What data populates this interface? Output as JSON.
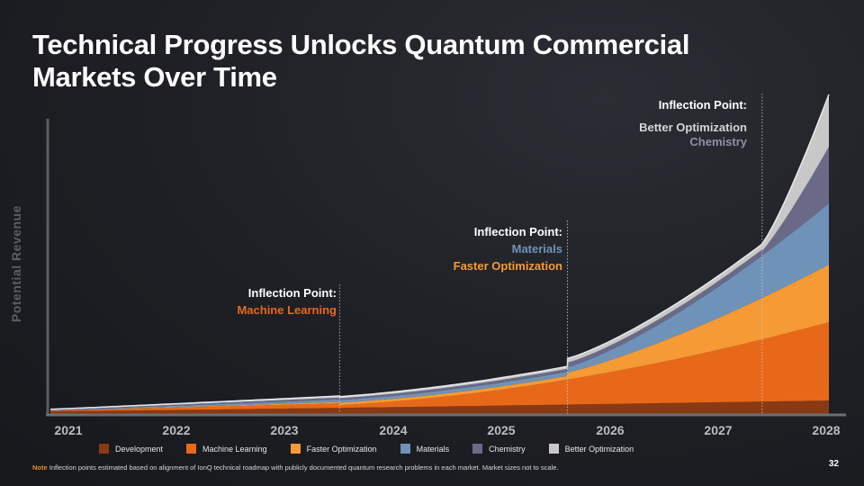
{
  "title": "Technical Progress Unlocks Quantum Commercial Markets Over Time",
  "page_number": "32",
  "note": {
    "label": "Note",
    "text": "Inflection points estimated based on alignment of IonQ technical roadmap with publicly documented quantum research problems in each market. Market sizes not to scale."
  },
  "inflections": [
    {
      "heading": "Inflection Point:",
      "lines": [
        {
          "text": "Machine Learning",
          "color": "#e8681a"
        }
      ]
    },
    {
      "heading": "Inflection Point:",
      "lines": [
        {
          "text": "Materials",
          "color": "#6f93b8"
        },
        {
          "text": "Faster Optimization",
          "color": "#f59a34"
        }
      ]
    },
    {
      "heading": "Inflection Point:",
      "lines": [
        {
          "text": "Better Optimization",
          "color": "#d6d6d6"
        },
        {
          "text": "Chemistry",
          "color": "#8f8fa8"
        }
      ]
    }
  ],
  "chart_data": {
    "type": "area",
    "stacked": true,
    "ylabel": "Potential Revenue",
    "xlabel": "",
    "x_ticks": [
      "2021",
      "2022",
      "2023",
      "2024",
      "2025",
      "2026",
      "2027",
      "2028"
    ],
    "xlim": [
      2021,
      2028
    ],
    "inflection_x": [
      2023.6,
      2025.65,
      2027.4
    ],
    "series": [
      {
        "name": "Development",
        "color": "#8a3a12"
      },
      {
        "name": "Machine Learning",
        "color": "#e8681a"
      },
      {
        "name": "Faster Optimization",
        "color": "#f59a34"
      },
      {
        "name": "Materials",
        "color": "#6f93b8"
      },
      {
        "name": "Chemistry",
        "color": "#6a6a88"
      },
      {
        "name": "Better Optimization",
        "color": "#c8c8c8"
      }
    ]
  }
}
